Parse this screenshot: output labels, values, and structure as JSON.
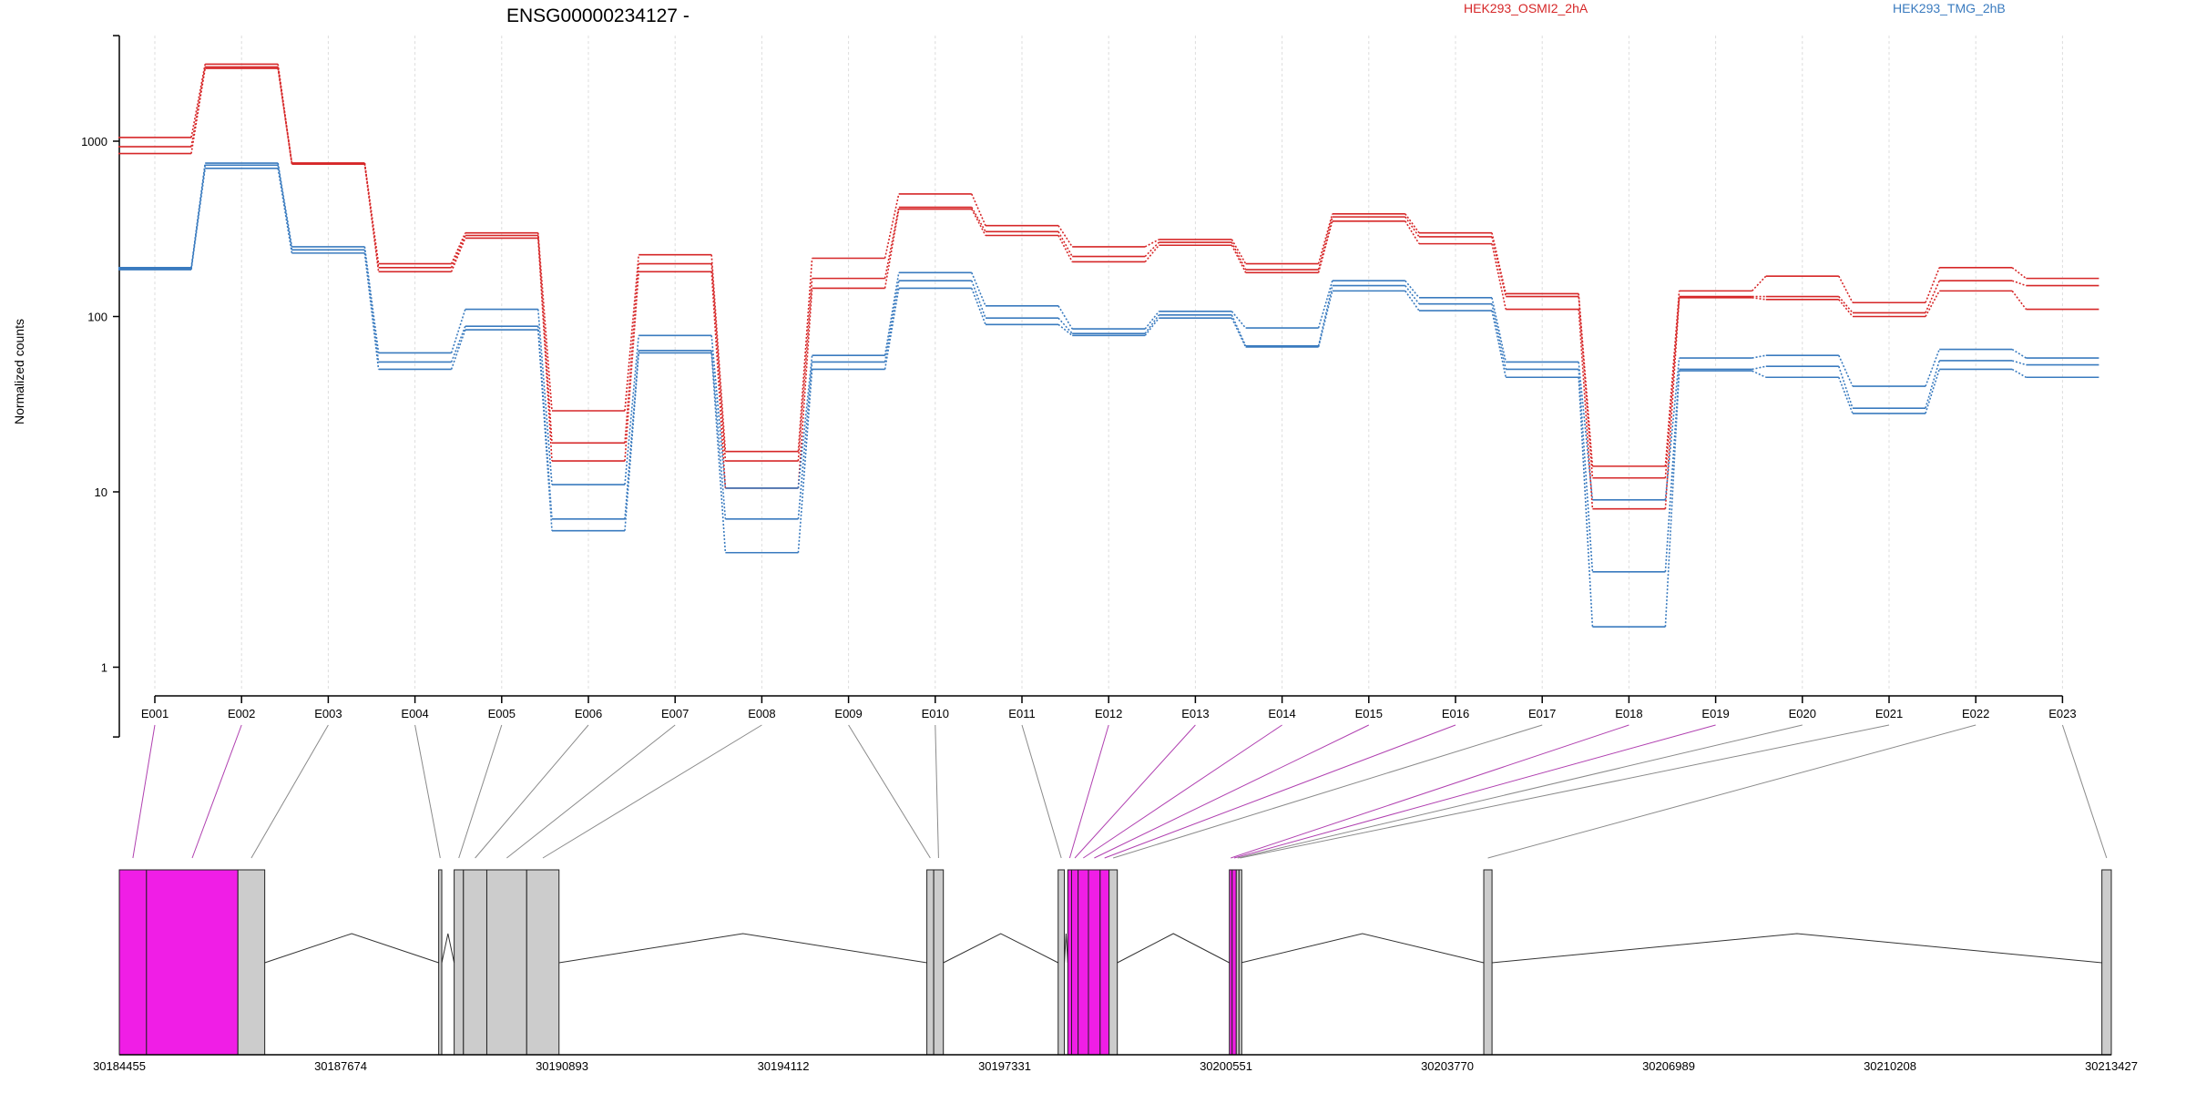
{
  "chart_data": {
    "type": "line",
    "title": "ENSG00000234127 -",
    "xlabel": "",
    "ylabel": "Normalized counts",
    "yscale": "log",
    "ylim": [
      0.4,
      4000
    ],
    "yticks": [
      1,
      10,
      100,
      1000
    ],
    "ytick_labels": [
      "1",
      "10",
      "100",
      "1000"
    ],
    "categories": [
      "E001",
      "E002",
      "E003",
      "E004",
      "E005",
      "E006",
      "E007",
      "E008",
      "E009",
      "E010",
      "E011",
      "E012",
      "E013",
      "E014",
      "E015",
      "E016",
      "E017",
      "E018",
      "E019",
      "E020",
      "E021",
      "E022",
      "E023"
    ],
    "legend_position": "top-right",
    "groups": [
      {
        "name": "HEK293_OSMI2_2hA",
        "color": "#d62728"
      },
      {
        "name": "HEK293_TMG_2hB",
        "color": "#3a7bbf"
      }
    ],
    "series": [
      {
        "group": 0,
        "values": [
          1050,
          2750,
          750,
          200,
          300,
          29,
          225,
          17,
          215,
          500,
          330,
          250,
          275,
          200,
          385,
          300,
          135,
          14,
          140,
          170,
          120,
          190,
          165
        ]
      },
      {
        "group": 0,
        "values": [
          930,
          2650,
          750,
          190,
          290,
          19,
          200,
          15,
          165,
          420,
          305,
          220,
          265,
          185,
          370,
          285,
          130,
          12,
          130,
          130,
          105,
          160,
          150
        ]
      },
      {
        "group": 0,
        "values": [
          850,
          2600,
          740,
          180,
          280,
          15,
          180,
          10.5,
          145,
          410,
          290,
          205,
          255,
          178,
          350,
          260,
          110,
          8,
          128,
          125,
          100,
          140,
          110
        ]
      },
      {
        "group": 1,
        "values": [
          190,
          750,
          250,
          62,
          110,
          11,
          78,
          10.5,
          60,
          178,
          115,
          85,
          107,
          86,
          160,
          128,
          55,
          9,
          58,
          60,
          40,
          65,
          58
        ]
      },
      {
        "group": 1,
        "values": [
          188,
          730,
          240,
          55,
          88,
          7,
          64,
          7,
          55,
          160,
          98,
          80,
          102,
          68,
          150,
          118,
          50,
          3.5,
          50,
          52,
          30,
          56,
          53
        ]
      },
      {
        "group": 1,
        "values": [
          185,
          700,
          230,
          50,
          84,
          6,
          62,
          4.5,
          50,
          145,
          90,
          78,
          98,
          67,
          140,
          108,
          45,
          1.7,
          49,
          45,
          28,
          50,
          45
        ]
      }
    ],
    "gene_model": {
      "coordinate_labels": [
        "30184455",
        "30187674",
        "30190893",
        "30194112",
        "30197331",
        "30200551",
        "30203770",
        "30206989",
        "30210208",
        "30213427"
      ],
      "genomic_range": [
        30184455,
        30213427
      ],
      "highlight_color": "#f01ee6",
      "exon_color": "#cccccc",
      "exons": [
        {
          "label": "E001",
          "start": 30184455,
          "end": 30184850,
          "highlight": true
        },
        {
          "label": "E002",
          "start": 30184850,
          "end": 30186180,
          "highlight": true
        },
        {
          "label": "E003",
          "start": 30186180,
          "end": 30186570,
          "highlight": false
        },
        {
          "label": "E004",
          "start": 30189100,
          "end": 30189145,
          "highlight": false
        },
        {
          "label": "E005",
          "start": 30189325,
          "end": 30189460,
          "highlight": false
        },
        {
          "label": "E006",
          "start": 30189460,
          "end": 30189800,
          "highlight": false
        },
        {
          "label": "E007",
          "start": 30189800,
          "end": 30190380,
          "highlight": false
        },
        {
          "label": "E008",
          "start": 30190380,
          "end": 30190850,
          "highlight": false
        },
        {
          "label": "E009",
          "start": 30196200,
          "end": 30196300,
          "highlight": false
        },
        {
          "label": "E010",
          "start": 30196300,
          "end": 30196440,
          "highlight": false
        },
        {
          "label": "E011",
          "start": 30198110,
          "end": 30198200,
          "highlight": false
        },
        {
          "label": "E012",
          "start": 30198250,
          "end": 30198305,
          "highlight": true
        },
        {
          "label": "E013",
          "start": 30198305,
          "end": 30198400,
          "highlight": true
        },
        {
          "label": "E014",
          "start": 30198400,
          "end": 30198550,
          "highlight": true
        },
        {
          "label": "E015",
          "start": 30198550,
          "end": 30198720,
          "highlight": true
        },
        {
          "label": "E016",
          "start": 30198720,
          "end": 30198850,
          "highlight": true
        },
        {
          "label": "E017",
          "start": 30198850,
          "end": 30198970,
          "highlight": false
        },
        {
          "label": "E018",
          "start": 30200600,
          "end": 30200640,
          "highlight": true
        },
        {
          "label": "E019",
          "start": 30200640,
          "end": 30200700,
          "highlight": true
        },
        {
          "label": "E020",
          "start": 30200700,
          "end": 30200740,
          "highlight": false
        },
        {
          "label": "E021",
          "start": 30200740,
          "end": 30200770,
          "highlight": false
        },
        {
          "label": "E022",
          "start": 30204300,
          "end": 30204420,
          "highlight": false
        },
        {
          "label": "E023",
          "start": 30213290,
          "end": 30213427,
          "highlight": false
        }
      ]
    }
  }
}
